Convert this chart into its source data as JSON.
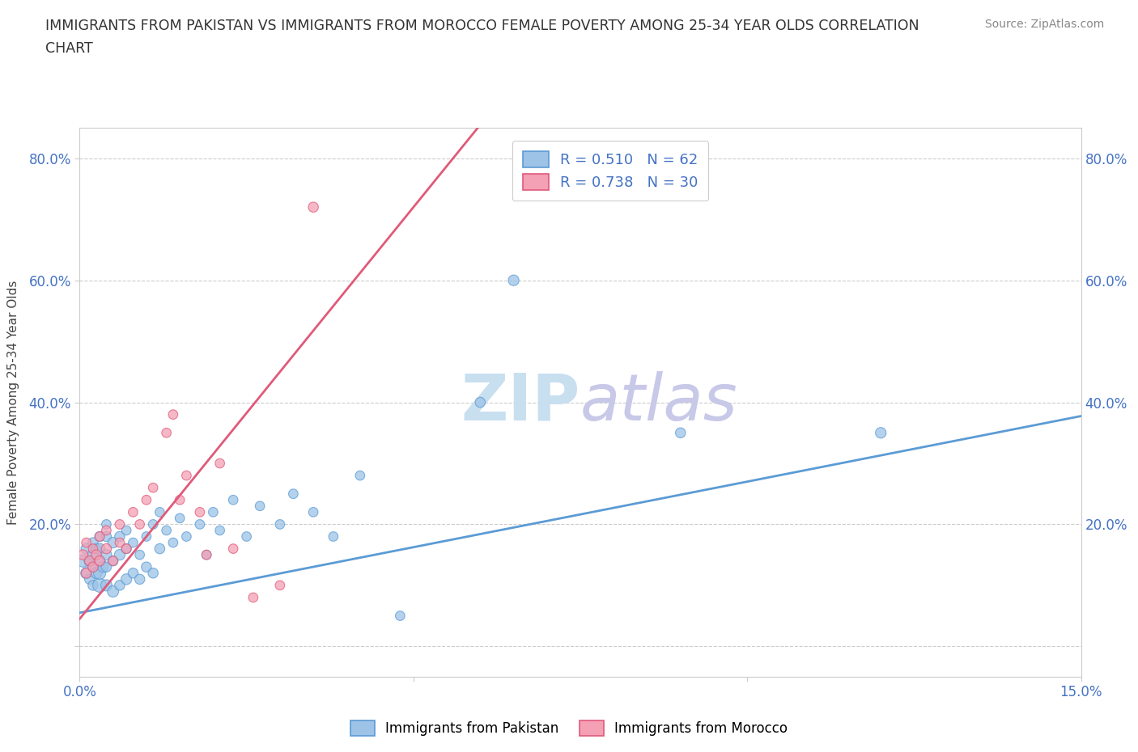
{
  "title": "IMMIGRANTS FROM PAKISTAN VS IMMIGRANTS FROM MOROCCO FEMALE POVERTY AMONG 25-34 YEAR OLDS CORRELATION\nCHART",
  "source": "Source: ZipAtlas.com",
  "ylabel": "Female Poverty Among 25-34 Year Olds",
  "xlim": [
    0.0,
    0.15
  ],
  "ylim": [
    -0.05,
    0.85
  ],
  "pakistan_color": "#5b9bd5",
  "pakistan_color_fill": "#9dc3e6",
  "morocco_color": "#f4a0b5",
  "morocco_color_dark": "#e05a7a",
  "R_pakistan": 0.51,
  "N_pakistan": 62,
  "R_morocco": 0.738,
  "N_morocco": 30,
  "pak_line_intercept": 0.055,
  "pak_line_slope": 2.15,
  "mor_line_intercept": 0.045,
  "mor_line_slope": 13.5,
  "pakistan_x": [
    0.0005,
    0.001,
    0.001,
    0.0015,
    0.0015,
    0.002,
    0.002,
    0.002,
    0.002,
    0.0025,
    0.0025,
    0.003,
    0.003,
    0.003,
    0.003,
    0.003,
    0.0035,
    0.004,
    0.004,
    0.004,
    0.004,
    0.004,
    0.005,
    0.005,
    0.005,
    0.006,
    0.006,
    0.006,
    0.007,
    0.007,
    0.007,
    0.008,
    0.008,
    0.009,
    0.009,
    0.01,
    0.01,
    0.011,
    0.011,
    0.012,
    0.012,
    0.013,
    0.014,
    0.015,
    0.016,
    0.018,
    0.019,
    0.02,
    0.021,
    0.023,
    0.025,
    0.027,
    0.03,
    0.032,
    0.035,
    0.038,
    0.042,
    0.048,
    0.06,
    0.065,
    0.09,
    0.12
  ],
  "pakistan_y": [
    0.14,
    0.12,
    0.16,
    0.11,
    0.14,
    0.1,
    0.13,
    0.15,
    0.17,
    0.12,
    0.16,
    0.1,
    0.12,
    0.14,
    0.16,
    0.18,
    0.13,
    0.1,
    0.13,
    0.15,
    0.18,
    0.2,
    0.09,
    0.14,
    0.17,
    0.1,
    0.15,
    0.18,
    0.11,
    0.16,
    0.19,
    0.12,
    0.17,
    0.11,
    0.15,
    0.13,
    0.18,
    0.12,
    0.2,
    0.16,
    0.22,
    0.19,
    0.17,
    0.21,
    0.18,
    0.2,
    0.15,
    0.22,
    0.19,
    0.24,
    0.18,
    0.23,
    0.2,
    0.25,
    0.22,
    0.18,
    0.28,
    0.05,
    0.4,
    0.6,
    0.35,
    0.35
  ],
  "pakistan_size": [
    120,
    100,
    90,
    80,
    100,
    80,
    90,
    100,
    80,
    100,
    80,
    150,
    120,
    100,
    90,
    80,
    90,
    100,
    80,
    90,
    80,
    70,
    100,
    80,
    90,
    80,
    90,
    80,
    90,
    80,
    70,
    80,
    70,
    80,
    70,
    80,
    70,
    80,
    70,
    80,
    70,
    70,
    70,
    70,
    70,
    70,
    70,
    70,
    70,
    70,
    70,
    70,
    70,
    70,
    70,
    70,
    70,
    70,
    80,
    90,
    80,
    90
  ],
  "morocco_x": [
    0.0005,
    0.001,
    0.001,
    0.0015,
    0.002,
    0.002,
    0.0025,
    0.003,
    0.003,
    0.004,
    0.004,
    0.005,
    0.006,
    0.006,
    0.007,
    0.008,
    0.009,
    0.01,
    0.011,
    0.013,
    0.014,
    0.015,
    0.016,
    0.018,
    0.019,
    0.021,
    0.023,
    0.026,
    0.03,
    0.035
  ],
  "morocco_y": [
    0.15,
    0.12,
    0.17,
    0.14,
    0.13,
    0.16,
    0.15,
    0.14,
    0.18,
    0.16,
    0.19,
    0.14,
    0.17,
    0.2,
    0.16,
    0.22,
    0.2,
    0.24,
    0.26,
    0.35,
    0.38,
    0.24,
    0.28,
    0.22,
    0.15,
    0.3,
    0.16,
    0.08,
    0.1,
    0.72
  ],
  "morocco_size": [
    80,
    80,
    70,
    80,
    80,
    70,
    80,
    80,
    70,
    80,
    70,
    70,
    70,
    70,
    70,
    70,
    70,
    70,
    70,
    70,
    70,
    70,
    70,
    70,
    70,
    70,
    70,
    70,
    70,
    80
  ],
  "watermark_zip": "ZIP",
  "watermark_atlas": "atlas",
  "watermark_color_zip": "#c8dff0",
  "watermark_color_atlas": "#c8c8e8",
  "background_color": "#ffffff",
  "grid_color": "#cccccc",
  "tick_color": "#4472c4",
  "spine_color": "#cccccc"
}
